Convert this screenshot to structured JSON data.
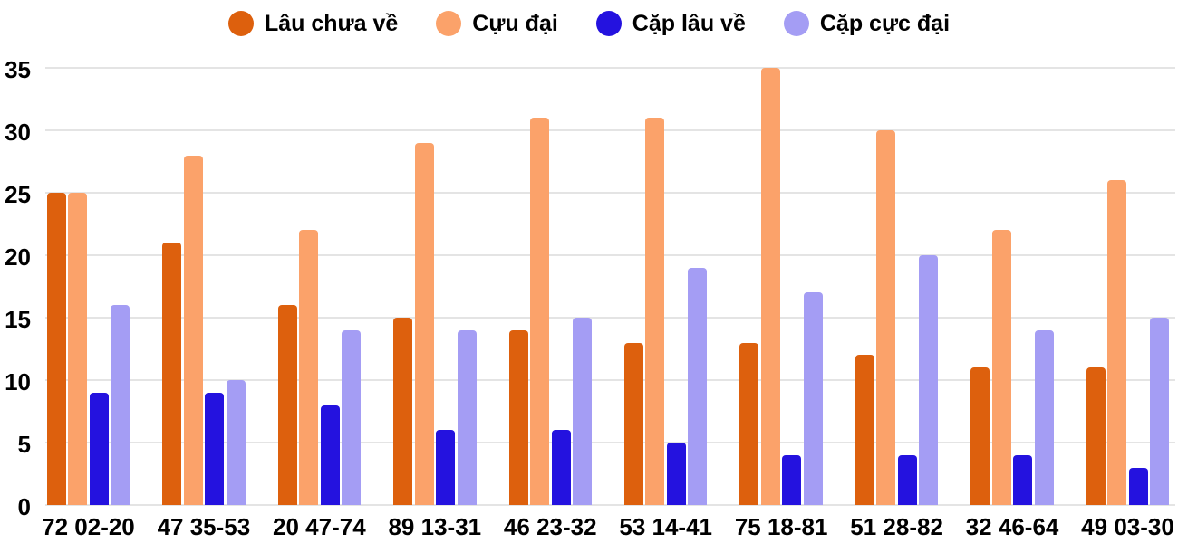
{
  "chart_data": {
    "type": "bar",
    "categories": [
      "72 02-20",
      "47 35-53",
      "20 47-74",
      "89 13-31",
      "46 23-32",
      "53 14-41",
      "75 18-81",
      "51 28-82",
      "32 46-64",
      "49 03-30"
    ],
    "series": [
      {
        "name": "Lâu chưa về",
        "color": "#dd600d",
        "values": [
          25,
          21,
          16,
          15,
          14,
          13,
          13,
          12,
          11,
          11
        ]
      },
      {
        "name": "Cựu đại",
        "color": "#fba26a",
        "values": [
          25,
          28,
          22,
          29,
          31,
          31,
          35,
          30,
          22,
          26
        ]
      },
      {
        "name": "Cặp lâu về",
        "color": "#2412df",
        "values": [
          9,
          9,
          8,
          6,
          6,
          5,
          4,
          4,
          4,
          3
        ]
      },
      {
        "name": "Cặp cực đại",
        "color": "#a49df4",
        "values": [
          16,
          10,
          14,
          14,
          15,
          19,
          17,
          20,
          14,
          15
        ]
      }
    ],
    "title": "",
    "xlabel": "",
    "ylabel": "",
    "ylim": [
      0,
      35
    ],
    "yticks": [
      0,
      5,
      10,
      15,
      20,
      25,
      30,
      35
    ],
    "grid": true,
    "grid_color": "#e4e4e4",
    "legend_position": "top",
    "text_color": "#000000",
    "background": "#ffffff"
  }
}
